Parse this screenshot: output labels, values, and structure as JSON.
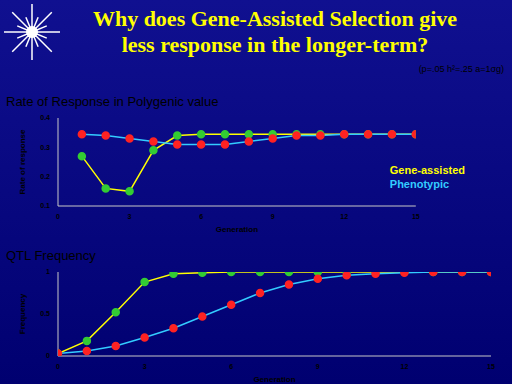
{
  "title": [
    "Why does Gene-Assisted Selection give",
    "less response in the longer-term?"
  ],
  "subtitle": "(p=.05 h²=.25 a=1σg)",
  "chart_data": [
    {
      "type": "line",
      "title": "Rate of Response in Polygenic value",
      "xlabel": "Generation",
      "ylabel": "Rate of response",
      "x": [
        1,
        2,
        3,
        4,
        5,
        6,
        7,
        8,
        9,
        10,
        11,
        12,
        13,
        14,
        15
      ],
      "xlim": [
        0,
        15
      ],
      "xticks": [
        0,
        3,
        6,
        9,
        12,
        15
      ],
      "ylim": [
        0.1,
        0.4
      ],
      "yticks": [
        0.1,
        0.2,
        0.3,
        0.4
      ],
      "grid": false,
      "legend": "right",
      "series": [
        {
          "name": "Gene-assisted",
          "color": "#ffff00",
          "marker": "circle",
          "values": [
            0.27,
            0.16,
            0.15,
            0.29,
            0.34,
            0.345,
            0.345,
            0.345,
            0.345,
            0.345,
            0.345,
            0.345,
            0.345,
            0.345,
            0.345
          ]
        },
        {
          "name": "Phenotypic",
          "color": "#33ccff",
          "marker": "circle",
          "values": [
            0.345,
            0.34,
            0.33,
            0.32,
            0.31,
            0.31,
            0.31,
            0.32,
            0.33,
            0.34,
            0.34,
            0.345,
            0.345,
            0.345,
            0.345
          ]
        }
      ]
    },
    {
      "type": "line",
      "title": "QTL  Frequency",
      "xlabel": "Generation",
      "ylabel": "Frequency",
      "x": [
        0,
        1,
        2,
        3,
        4,
        5,
        6,
        7,
        8,
        9,
        10,
        11,
        12,
        13,
        14,
        15
      ],
      "xlim": [
        0,
        15
      ],
      "xticks": [
        0,
        3,
        6,
        9,
        12,
        15
      ],
      "ylim": [
        0,
        1
      ],
      "yticks": [
        0,
        0.5,
        1
      ],
      "grid": false,
      "series": [
        {
          "name": "Gene-assisted",
          "color": "#ffff00",
          "marker": "circle",
          "values": [
            0.03,
            0.18,
            0.52,
            0.88,
            0.98,
            0.99,
            1,
            1,
            1,
            1,
            1,
            1,
            1,
            1,
            1,
            1
          ]
        },
        {
          "name": "Phenotypic",
          "color": "#33ccff",
          "marker": "circle",
          "values": [
            0.03,
            0.06,
            0.12,
            0.22,
            0.33,
            0.47,
            0.61,
            0.75,
            0.85,
            0.92,
            0.96,
            0.98,
            0.99,
            1,
            1,
            1
          ]
        }
      ]
    }
  ]
}
